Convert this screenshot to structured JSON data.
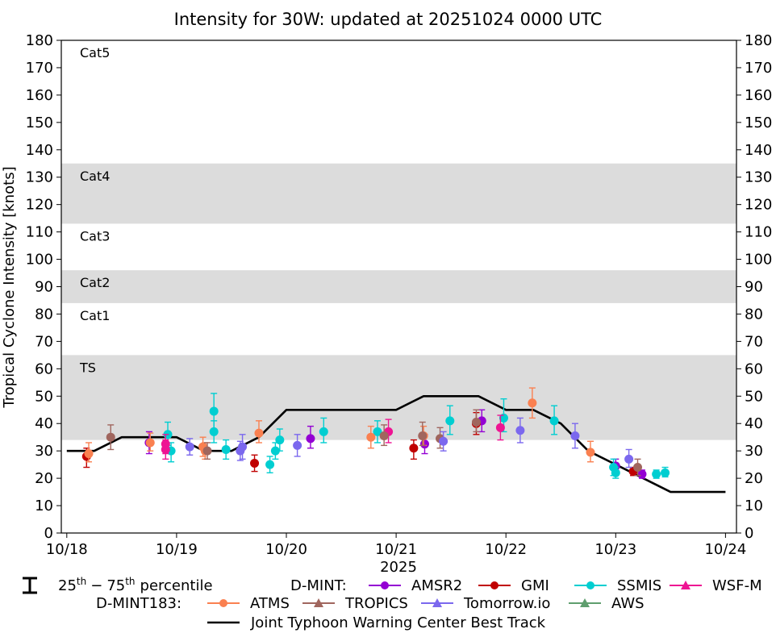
{
  "chart_data": {
    "type": "scatter",
    "title": "Intensity for 30W: updated at 20251024 0000 UTC",
    "ylabel": "Tropical Cyclone Intensity [knots]",
    "xlabel": "2025",
    "xlim": [
      -0.05,
      6.1
    ],
    "ylim": [
      0,
      180
    ],
    "x_ticks": [
      0,
      1,
      2,
      3,
      4,
      5,
      6
    ],
    "x_tick_labels": [
      "10/18",
      "10/19",
      "10/20",
      "10/21",
      "10/22",
      "10/23",
      "10/24"
    ],
    "y_ticks": [
      0,
      10,
      20,
      30,
      40,
      50,
      60,
      70,
      80,
      90,
      100,
      110,
      120,
      130,
      140,
      150,
      160,
      170,
      180
    ],
    "bands": [
      {
        "label": "TS",
        "low": 34,
        "high": 65,
        "shaded": true
      },
      {
        "label": "Cat1",
        "low": 65,
        "high": 84,
        "shaded": false
      },
      {
        "label": "Cat2",
        "low": 84,
        "high": 96,
        "shaded": true
      },
      {
        "label": "Cat3",
        "low": 96,
        "high": 113,
        "shaded": false
      },
      {
        "label": "Cat4",
        "low": 113,
        "high": 135,
        "shaded": true
      },
      {
        "label": "Cat5",
        "low": 135,
        "high": 180,
        "shaded": false
      }
    ],
    "best_track": {
      "name": "Joint Typhoon Warning Center Best Track",
      "color": "#000000",
      "x": [
        0,
        0.25,
        0.5,
        0.75,
        1.0,
        1.25,
        1.5,
        1.75,
        2.0,
        2.25,
        2.5,
        2.75,
        3.0,
        3.25,
        3.5,
        3.75,
        4.0,
        4.25,
        4.5,
        4.75,
        5.0,
        5.25,
        5.5,
        5.75,
        6.0
      ],
      "y": [
        30,
        30,
        35,
        35,
        35,
        30,
        30,
        35,
        45,
        45,
        45,
        45,
        45,
        50,
        50,
        50,
        45,
        45,
        40,
        30,
        25,
        20,
        15,
        15,
        15
      ]
    },
    "series": [
      {
        "name": "AMSR2",
        "group": "D-MINT",
        "color": "#9400d3",
        "marker": "circle",
        "points": [
          [
            0.75,
            33,
            29,
            37
          ],
          [
            2.22,
            34.5,
            31,
            39
          ],
          [
            3.26,
            32.5,
            29,
            36
          ],
          [
            3.78,
            41,
            37,
            45
          ],
          [
            5.0,
            24.5,
            22,
            27
          ],
          [
            5.24,
            21.5,
            20,
            23
          ]
        ]
      },
      {
        "name": "GMI",
        "group": "D-MINT",
        "color": "#c00000",
        "marker": "circle",
        "points": [
          [
            0.18,
            28,
            24,
            31
          ],
          [
            1.71,
            25.5,
            22.5,
            28.5
          ],
          [
            3.16,
            31,
            27,
            34
          ],
          [
            3.73,
            40,
            36,
            44
          ],
          [
            5.16,
            22.5,
            21,
            24
          ]
        ]
      },
      {
        "name": "SSMIS",
        "group": "D-MINT",
        "color": "#00ced1",
        "marker": "circle",
        "points": [
          [
            0.92,
            36,
            32,
            40.5
          ],
          [
            0.95,
            30,
            26,
            33
          ],
          [
            1.34,
            44.5,
            38,
            51
          ],
          [
            1.45,
            30.5,
            27,
            34
          ],
          [
            1.34,
            37,
            33,
            41
          ],
          [
            1.85,
            25,
            22,
            28
          ],
          [
            1.9,
            30,
            27,
            33
          ],
          [
            1.94,
            34,
            30,
            38
          ],
          [
            2.34,
            37,
            33,
            42
          ],
          [
            2.83,
            37,
            33,
            41
          ],
          [
            3.49,
            41,
            36,
            46.5
          ],
          [
            3.98,
            42,
            37,
            49
          ],
          [
            4.44,
            41,
            36,
            46.5
          ],
          [
            4.98,
            24,
            21,
            27
          ],
          [
            5.0,
            22,
            20,
            24
          ],
          [
            5.37,
            21.5,
            20,
            23
          ],
          [
            5.45,
            22,
            20.5,
            24
          ]
        ]
      },
      {
        "name": "WSF-M",
        "group": "D-MINT",
        "color": "#ee1493",
        "marker": "triangle",
        "points": [
          [
            0.9,
            32.5,
            29,
            36
          ],
          [
            0.9,
            30.5,
            27,
            34
          ],
          [
            2.93,
            37,
            33,
            41.5
          ],
          [
            3.95,
            38.5,
            34,
            43
          ]
        ]
      },
      {
        "name": "ATMS",
        "group": "D-MINT183",
        "color": "#fa8050",
        "marker": "circle",
        "points": [
          [
            0.2,
            29,
            26,
            33
          ],
          [
            0.76,
            33,
            30,
            36.5
          ],
          [
            1.24,
            31.5,
            28,
            35
          ],
          [
            1.26,
            30,
            27,
            33
          ],
          [
            1.75,
            36.5,
            33,
            41
          ],
          [
            2.77,
            35,
            31,
            39
          ],
          [
            3.25,
            35.5,
            32,
            39
          ],
          [
            4.24,
            47.5,
            42,
            53
          ],
          [
            4.77,
            29.5,
            26,
            33.5
          ]
        ]
      },
      {
        "name": "TROPICS",
        "group": "D-MINT183",
        "color": "#a0665e",
        "marker": "triangle",
        "points": [
          [
            0.4,
            35,
            30.5,
            39.5
          ],
          [
            1.28,
            30,
            27,
            33
          ],
          [
            2.89,
            35.5,
            32,
            39.5
          ],
          [
            3.24,
            35.5,
            32,
            40.5
          ],
          [
            3.4,
            34.5,
            31,
            38.5
          ],
          [
            3.73,
            40.5,
            37,
            45
          ],
          [
            5.2,
            24,
            21,
            27
          ]
        ]
      },
      {
        "name": "Tomorrow.io",
        "group": "D-MINT183",
        "color": "#7b68ee",
        "marker": "triangle",
        "points": [
          [
            1.12,
            31.5,
            28.5,
            34.5
          ],
          [
            1.6,
            31.5,
            27,
            36
          ],
          [
            1.58,
            30,
            26.5,
            33.5
          ],
          [
            2.1,
            32,
            28,
            36
          ],
          [
            3.43,
            33.5,
            30,
            37
          ],
          [
            4.13,
            37.5,
            33,
            42
          ],
          [
            4.63,
            35.5,
            31,
            40
          ],
          [
            5.12,
            27,
            24,
            30.5
          ]
        ]
      },
      {
        "name": "AWS",
        "group": "D-MINT183",
        "color": "#5f9e6e",
        "marker": "triangle",
        "points": []
      }
    ],
    "legend": {
      "percentile_label": "25th − 75th percentile",
      "percentile_label_parts": {
        "p25": "25",
        "p75": "75",
        "sup": "th",
        "dash": "−",
        "word": "percentile"
      },
      "dmint_label": "D-MINT:",
      "dmint183_label": "D-MINT183:",
      "best_track_label": "Joint Typhoon Warning Center Best Track",
      "placement": "bottom"
    }
  }
}
